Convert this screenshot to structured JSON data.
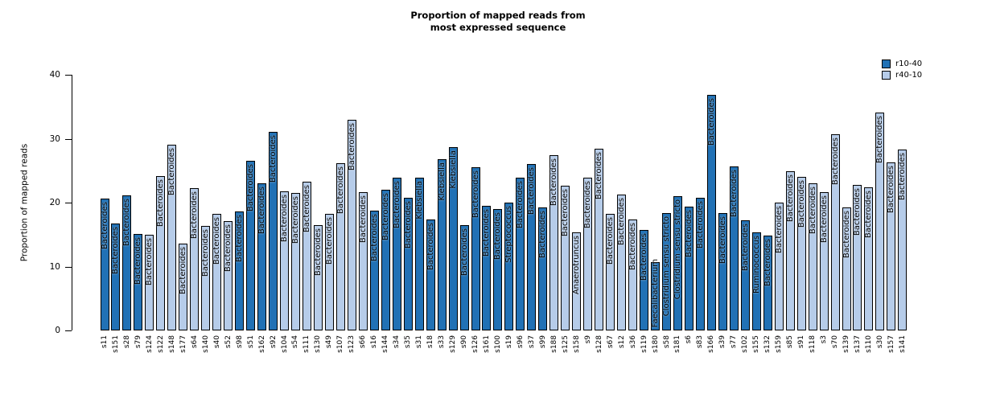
{
  "title": {
    "line1": "Proportion of mapped reads from",
    "line2": "most expressed sequence"
  },
  "y_axis": {
    "label": "Proportion of mapped reads",
    "ticks": [
      0,
      10,
      20,
      30,
      40
    ]
  },
  "legend": [
    {
      "label": "r10-40",
      "color": "#2171b5"
    },
    {
      "label": "r40-10",
      "color": "#b6cce9"
    }
  ],
  "colors": {
    "dark": "#2171b5",
    "light": "#b6cce9"
  },
  "chart_data": {
    "type": "bar",
    "title": "Proportion of mapped reads from most expressed sequence",
    "xlabel": "",
    "ylabel": "Proportion of mapped reads",
    "ylim": [
      0,
      40
    ],
    "grid": false,
    "legend_position": "top-right",
    "bars": [
      {
        "sample": "s11",
        "value": 20.6,
        "group": "r10-40",
        "taxon": "Bacteroides"
      },
      {
        "sample": "s151",
        "value": 16.7,
        "group": "r10-40",
        "taxon": "Bacteroides"
      },
      {
        "sample": "s28",
        "value": 21.1,
        "group": "r10-40",
        "taxon": "Bacteroides"
      },
      {
        "sample": "s79",
        "value": 15.1,
        "group": "r10-40",
        "taxon": "Bacteroides"
      },
      {
        "sample": "s124",
        "value": 15.0,
        "group": "r40-10",
        "taxon": "Bacteroides"
      },
      {
        "sample": "s122",
        "value": 24.2,
        "group": "r40-10",
        "taxon": "Bacteroides"
      },
      {
        "sample": "s148",
        "value": 29.1,
        "group": "r40-10",
        "taxon": "Bacteroides"
      },
      {
        "sample": "s177",
        "value": 13.6,
        "group": "r40-10",
        "taxon": "Bacteroides"
      },
      {
        "sample": "s64",
        "value": 22.3,
        "group": "r40-10",
        "taxon": "Bacteroides"
      },
      {
        "sample": "s140",
        "value": 16.3,
        "group": "r40-10",
        "taxon": "Bacteroides"
      },
      {
        "sample": "s40",
        "value": 18.3,
        "group": "r40-10",
        "taxon": "Bacteroides"
      },
      {
        "sample": "s52",
        "value": 17.1,
        "group": "r40-10",
        "taxon": "Bacteroides"
      },
      {
        "sample": "s98",
        "value": 18.6,
        "group": "r10-40",
        "taxon": "Bacteroides"
      },
      {
        "sample": "s51",
        "value": 26.5,
        "group": "r10-40",
        "taxon": "Bacteroides"
      },
      {
        "sample": "s162",
        "value": 23.0,
        "group": "r10-40",
        "taxon": "Bacteroides"
      },
      {
        "sample": "s92",
        "value": 31.1,
        "group": "r10-40",
        "taxon": "Bacteroides"
      },
      {
        "sample": "s104",
        "value": 21.8,
        "group": "r40-10",
        "taxon": "Bacteroides"
      },
      {
        "sample": "s54",
        "value": 21.5,
        "group": "r40-10",
        "taxon": "Bacteroides"
      },
      {
        "sample": "s111",
        "value": 23.3,
        "group": "r40-10",
        "taxon": "Bacteroides"
      },
      {
        "sample": "s130",
        "value": 16.5,
        "group": "r40-10",
        "taxon": "Bacteroides"
      },
      {
        "sample": "s49",
        "value": 18.2,
        "group": "r40-10",
        "taxon": "Bacteroides"
      },
      {
        "sample": "s107",
        "value": 26.2,
        "group": "r40-10",
        "taxon": "Bacteroides"
      },
      {
        "sample": "s123",
        "value": 32.9,
        "group": "r40-10",
        "taxon": "Bacteroides"
      },
      {
        "sample": "s66",
        "value": 21.6,
        "group": "r40-10",
        "taxon": "Bacteroides"
      },
      {
        "sample": "s16",
        "value": 18.8,
        "group": "r10-40",
        "taxon": "Bacteroides"
      },
      {
        "sample": "s144",
        "value": 22.0,
        "group": "r10-40",
        "taxon": "Bacteroides"
      },
      {
        "sample": "s34",
        "value": 23.9,
        "group": "r10-40",
        "taxon": "Bacteroides"
      },
      {
        "sample": "s35",
        "value": 20.8,
        "group": "r10-40",
        "taxon": "Bacteroides"
      },
      {
        "sample": "s31",
        "value": 23.9,
        "group": "r10-40",
        "taxon": "Klebsiella"
      },
      {
        "sample": "s18",
        "value": 17.3,
        "group": "r10-40",
        "taxon": "Bacteroides"
      },
      {
        "sample": "s33",
        "value": 26.8,
        "group": "r10-40",
        "taxon": "Klebsiella"
      },
      {
        "sample": "s129",
        "value": 28.7,
        "group": "r10-40",
        "taxon": "Klebsiella"
      },
      {
        "sample": "s90",
        "value": 16.5,
        "group": "r10-40",
        "taxon": "Bacteroides"
      },
      {
        "sample": "s126",
        "value": 25.5,
        "group": "r10-40",
        "taxon": "Bacteroides"
      },
      {
        "sample": "s161",
        "value": 19.5,
        "group": "r10-40",
        "taxon": "Bacteroides"
      },
      {
        "sample": "s100",
        "value": 19.0,
        "group": "r10-40",
        "taxon": "Bacteroides"
      },
      {
        "sample": "s19",
        "value": 20.0,
        "group": "r10-40",
        "taxon": "Streptococcus"
      },
      {
        "sample": "s96",
        "value": 23.9,
        "group": "r10-40",
        "taxon": "Bacteroides"
      },
      {
        "sample": "s37",
        "value": 26.0,
        "group": "r10-40",
        "taxon": "Bacteroides"
      },
      {
        "sample": "s99",
        "value": 19.2,
        "group": "r10-40",
        "taxon": "Bacteroides"
      },
      {
        "sample": "s188",
        "value": 27.4,
        "group": "r40-10",
        "taxon": "Bacteroides"
      },
      {
        "sample": "s125",
        "value": 22.6,
        "group": "r40-10",
        "taxon": "Bacteroides"
      },
      {
        "sample": "s158",
        "value": 15.4,
        "group": "r40-10",
        "taxon": "Anaerotruncus"
      },
      {
        "sample": "s9",
        "value": 23.9,
        "group": "r40-10",
        "taxon": "Bacteroides"
      },
      {
        "sample": "s128",
        "value": 28.4,
        "group": "r40-10",
        "taxon": "Bacteroides"
      },
      {
        "sample": "s67",
        "value": 18.3,
        "group": "r40-10",
        "taxon": "Bacteroides"
      },
      {
        "sample": "s12",
        "value": 21.2,
        "group": "r40-10",
        "taxon": "Bacteroides"
      },
      {
        "sample": "s36",
        "value": 17.4,
        "group": "r40-10",
        "taxon": "Bacteroides"
      },
      {
        "sample": "s119",
        "value": 15.7,
        "group": "r10-40",
        "taxon": "Bacteroides"
      },
      {
        "sample": "s180",
        "value": 10.7,
        "group": "r10-40",
        "taxon": "Faecalibacterium"
      },
      {
        "sample": "s58",
        "value": 18.4,
        "group": "r10-40",
        "taxon": "Clostridium sensu stricto"
      },
      {
        "sample": "s181",
        "value": 21.0,
        "group": "r10-40",
        "taxon": "Clostridium sensu stricto"
      },
      {
        "sample": "s6",
        "value": 19.4,
        "group": "r10-40",
        "taxon": "Bacteroides"
      },
      {
        "sample": "s83",
        "value": 20.7,
        "group": "r10-40",
        "taxon": "Bacteroides"
      },
      {
        "sample": "s166",
        "value": 36.9,
        "group": "r10-40",
        "taxon": "Bacteroides"
      },
      {
        "sample": "s39",
        "value": 18.4,
        "group": "r10-40",
        "taxon": "Bacteroides"
      },
      {
        "sample": "s77",
        "value": 25.6,
        "group": "r10-40",
        "taxon": "Bacteroides"
      },
      {
        "sample": "s102",
        "value": 17.2,
        "group": "r10-40",
        "taxon": "Bacteroides"
      },
      {
        "sample": "s155",
        "value": 15.3,
        "group": "r10-40",
        "taxon": "Ruminococcus"
      },
      {
        "sample": "s132",
        "value": 14.8,
        "group": "r10-40",
        "taxon": "Bacteroides"
      },
      {
        "sample": "s159",
        "value": 20.0,
        "group": "r40-10",
        "taxon": "Bacteroides"
      },
      {
        "sample": "s85",
        "value": 24.9,
        "group": "r40-10",
        "taxon": "Bacteroides"
      },
      {
        "sample": "s91",
        "value": 24.0,
        "group": "r40-10",
        "taxon": "Bacteroides"
      },
      {
        "sample": "s118",
        "value": 23.0,
        "group": "r40-10",
        "taxon": "Bacteroides"
      },
      {
        "sample": "s3",
        "value": 21.6,
        "group": "r40-10",
        "taxon": "Bacteroides"
      },
      {
        "sample": "s70",
        "value": 30.7,
        "group": "r40-10",
        "taxon": "Bacteroides"
      },
      {
        "sample": "s139",
        "value": 19.3,
        "group": "r40-10",
        "taxon": "Bacteroides"
      },
      {
        "sample": "s137",
        "value": 22.8,
        "group": "r40-10",
        "taxon": "Bacteroides"
      },
      {
        "sample": "s110",
        "value": 22.4,
        "group": "r40-10",
        "taxon": "Bacteroides"
      },
      {
        "sample": "s30",
        "value": 34.1,
        "group": "r40-10",
        "taxon": "Bacteroides"
      },
      {
        "sample": "s157",
        "value": 26.3,
        "group": "r40-10",
        "taxon": "Bacteroides"
      },
      {
        "sample": "s141",
        "value": 28.3,
        "group": "r40-10",
        "taxon": "Bacteroides"
      }
    ]
  }
}
